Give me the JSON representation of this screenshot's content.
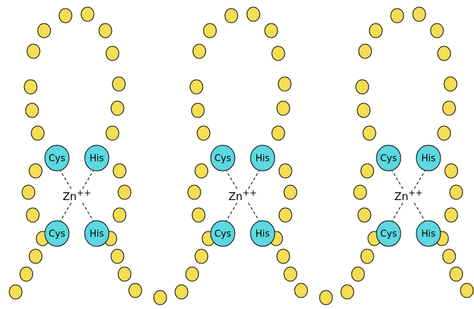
{
  "fingers": [
    {
      "residues": [
        "Cys",
        "His",
        "Cys",
        "His"
      ],
      "ion": "Zn",
      "charge": "++"
    },
    {
      "residues": [
        "Cys",
        "His",
        "Cys",
        "His"
      ],
      "ion": "Zn",
      "charge": "++"
    },
    {
      "residues": [
        "Cys",
        "His",
        "Cys",
        "His"
      ],
      "ion": "Zn",
      "charge": "++"
    }
  ]
}
